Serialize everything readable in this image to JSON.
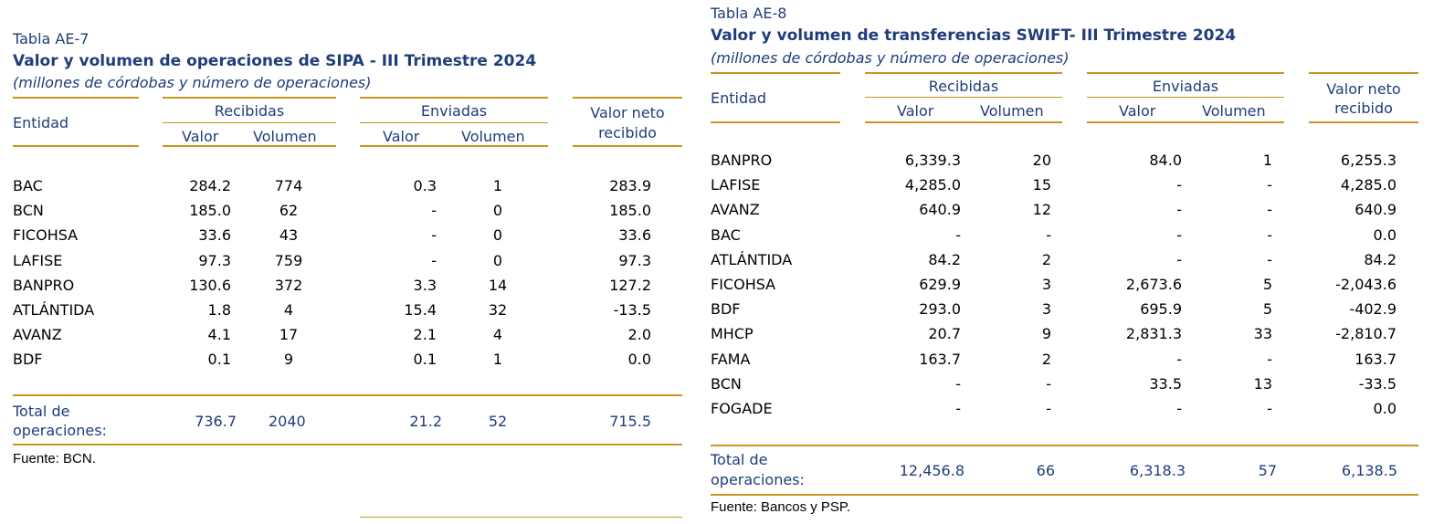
{
  "left": {
    "label": "Tabla AE-7",
    "title": "Valor y volumen de operaciones de SIPA - III Trimestre 2024",
    "subtitle": "(millones de córdobas y número de operaciones)",
    "headers": {
      "entidad": "Entidad",
      "recibidas": "Recibidas",
      "enviadas": "Enviadas",
      "valor_neto": "Valor neto",
      "recibido": "recibido",
      "valor": "Valor",
      "volumen": "Volumen"
    },
    "rows": [
      [
        "BAC",
        "284.2",
        "774",
        "0.3",
        "1",
        "283.9"
      ],
      [
        "BCN",
        "185.0",
        "62",
        "-",
        "0",
        "185.0"
      ],
      [
        "FICOHSA",
        "33.6",
        "43",
        "-",
        "0",
        "33.6"
      ],
      [
        "LAFISE",
        "97.3",
        "759",
        "-",
        "0",
        "97.3"
      ],
      [
        "BANPRO",
        "130.6",
        "372",
        "3.3",
        "14",
        "127.2"
      ],
      [
        "ATLÁNTIDA",
        "1.8",
        "4",
        "15.4",
        "32",
        "-13.5"
      ],
      [
        "AVANZ",
        "4.1",
        "17",
        "2.1",
        "4",
        "2.0"
      ],
      [
        "BDF",
        "0.1",
        "9",
        "0.1",
        "1",
        "0.0"
      ]
    ],
    "total": {
      "label1": "Total de",
      "label2": "operaciones:",
      "values": [
        "736.7",
        "2040",
        "21.2",
        "52",
        "715.5"
      ]
    },
    "source": "Fuente: BCN."
  },
  "right": {
    "label": "Tabla AE-8",
    "title": "Valor y volumen de transferencias SWIFT- III Trimestre 2024",
    "subtitle": "(millones de córdobas y número de operaciones)",
    "headers": {
      "entidad": "Entidad",
      "recibidas": "Recibidas",
      "enviadas": "Enviadas",
      "valor_neto": "Valor neto",
      "recibido": "recibido",
      "valor": "Valor",
      "volumen": "Volumen"
    },
    "rows": [
      [
        "BANPRO",
        "6,339.3",
        "20",
        "84.0",
        "1",
        "6,255.3"
      ],
      [
        "LAFISE",
        "4,285.0",
        "15",
        "-",
        "-",
        "4,285.0"
      ],
      [
        "AVANZ",
        "640.9",
        "12",
        "-",
        "-",
        "640.9"
      ],
      [
        "BAC",
        "-",
        "-",
        "-",
        "-",
        "0.0"
      ],
      [
        "ATLÁNTIDA",
        "84.2",
        "2",
        "-",
        "-",
        "84.2"
      ],
      [
        "FICOHSA",
        "629.9",
        "3",
        "2,673.6",
        "5",
        "-2,043.6"
      ],
      [
        "BDF",
        "293.0",
        "3",
        "695.9",
        "5",
        "-402.9"
      ],
      [
        "MHCP",
        "20.7",
        "9",
        "2,831.3",
        "33",
        "-2,810.7"
      ],
      [
        "FAMA",
        "163.7",
        "2",
        "-",
        "-",
        "163.7"
      ],
      [
        "BCN",
        "-",
        "-",
        "33.5",
        "13",
        "-33.5"
      ],
      [
        "FOGADE",
        "-",
        "-",
        "-",
        "-",
        "0.0"
      ]
    ],
    "total": {
      "label1": "Total de",
      "label2": "operaciones:",
      "values": [
        "12,456.8",
        "66",
        "6,318.3",
        "57",
        "6,138.5"
      ]
    },
    "source": "Fuente: Bancos y PSP."
  }
}
